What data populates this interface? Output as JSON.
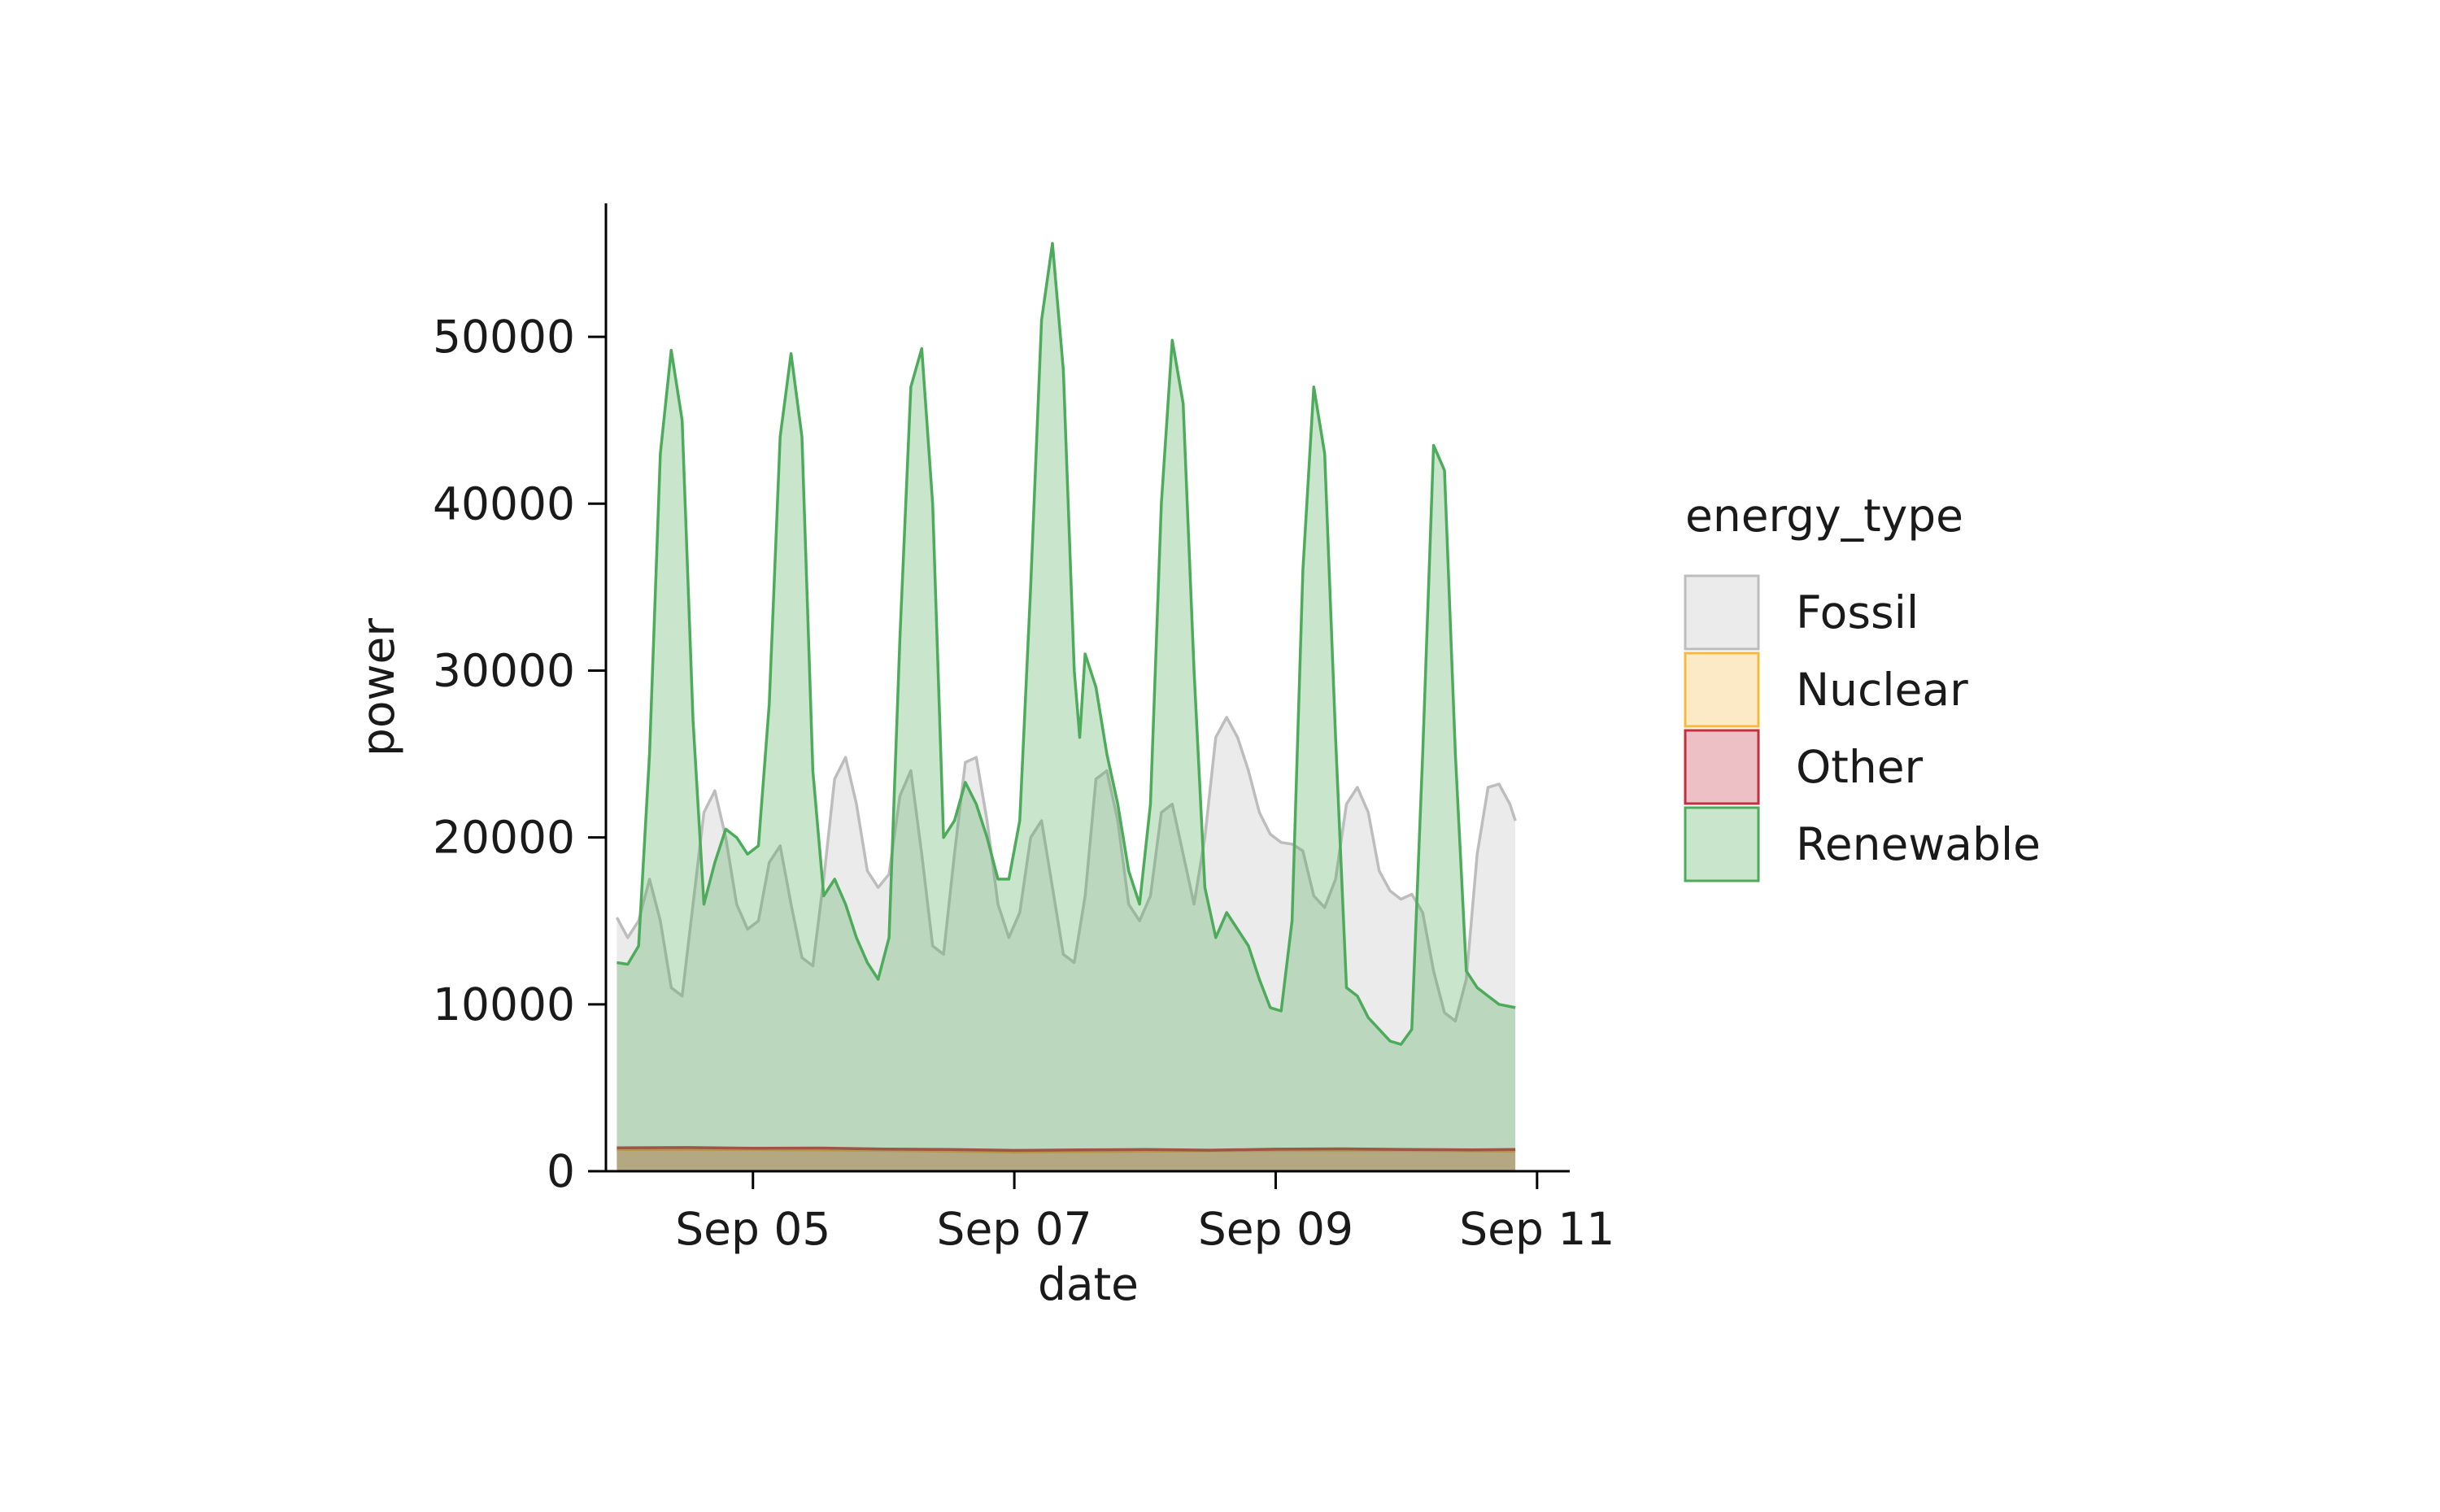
{
  "chart_data": {
    "type": "area",
    "xlabel": "date",
    "ylabel": "power",
    "xlim": [
      "2024-09-03 21:00",
      "2024-09-11 06:00"
    ],
    "ylim": [
      0,
      58000
    ],
    "x_ticks": [
      {
        "value": "2024-09-05 00:00",
        "label": "Sep 05"
      },
      {
        "value": "2024-09-07 00:00",
        "label": "Sep 07"
      },
      {
        "value": "2024-09-09 00:00",
        "label": "Sep 09"
      },
      {
        "value": "2024-09-11 00:00",
        "label": "Sep 11"
      }
    ],
    "y_ticks": [
      0,
      10000,
      20000,
      30000,
      40000,
      50000
    ],
    "y_tick_labels": [
      "0",
      "10000",
      "20000",
      "30000",
      "40000",
      "50000"
    ],
    "legend": {
      "title": "energy_type",
      "placement": "right"
    },
    "grid": false,
    "stacked": false,
    "series": [
      {
        "name": "Fossil",
        "color": "#bdbdbd",
        "points": [
          [
            "2024-09-03 23:00",
            15200
          ],
          [
            "2024-09-04 01:00",
            14000
          ],
          [
            "2024-09-04 03:00",
            15000
          ],
          [
            "2024-09-04 05:00",
            17500
          ],
          [
            "2024-09-04 07:00",
            15000
          ],
          [
            "2024-09-04 09:00",
            11000
          ],
          [
            "2024-09-04 11:00",
            10500
          ],
          [
            "2024-09-04 13:00",
            16000
          ],
          [
            "2024-09-04 15:00",
            21500
          ],
          [
            "2024-09-04 17:00",
            22800
          ],
          [
            "2024-09-04 19:00",
            20000
          ],
          [
            "2024-09-04 21:00",
            16000
          ],
          [
            "2024-09-04 23:00",
            14500
          ],
          [
            "2024-09-05 01:00",
            15000
          ],
          [
            "2024-09-05 03:00",
            18500
          ],
          [
            "2024-09-05 05:00",
            19500
          ],
          [
            "2024-09-05 07:00",
            16000
          ],
          [
            "2024-09-05 09:00",
            12800
          ],
          [
            "2024-09-05 11:00",
            12300
          ],
          [
            "2024-09-05 13:00",
            17500
          ],
          [
            "2024-09-05 15:00",
            23500
          ],
          [
            "2024-09-05 17:00",
            24800
          ],
          [
            "2024-09-05 19:00",
            22000
          ],
          [
            "2024-09-05 21:00",
            18000
          ],
          [
            "2024-09-05 23:00",
            17000
          ],
          [
            "2024-09-06 01:00",
            17800
          ],
          [
            "2024-09-06 03:00",
            22500
          ],
          [
            "2024-09-06 05:00",
            24000
          ],
          [
            "2024-09-06 07:00",
            19000
          ],
          [
            "2024-09-06 09:00",
            13500
          ],
          [
            "2024-09-06 11:00",
            13000
          ],
          [
            "2024-09-06 13:00",
            19000
          ],
          [
            "2024-09-06 15:00",
            24500
          ],
          [
            "2024-09-06 17:00",
            24800
          ],
          [
            "2024-09-06 19:00",
            21000
          ],
          [
            "2024-09-06 21:00",
            16000
          ],
          [
            "2024-09-06 23:00",
            14000
          ],
          [
            "2024-09-07 01:00",
            15500
          ],
          [
            "2024-09-07 03:00",
            20000
          ],
          [
            "2024-09-07 05:00",
            21000
          ],
          [
            "2024-09-07 07:00",
            17000
          ],
          [
            "2024-09-07 09:00",
            13000
          ],
          [
            "2024-09-07 11:00",
            12500
          ],
          [
            "2024-09-07 13:00",
            16500
          ],
          [
            "2024-09-07 15:00",
            23500
          ],
          [
            "2024-09-07 17:00",
            24000
          ],
          [
            "2024-09-07 19:00",
            21000
          ],
          [
            "2024-09-07 21:00",
            16000
          ],
          [
            "2024-09-07 23:00",
            15000
          ],
          [
            "2024-09-08 01:00",
            16500
          ],
          [
            "2024-09-08 03:00",
            21500
          ],
          [
            "2024-09-08 05:00",
            22000
          ],
          [
            "2024-09-08 07:00",
            19000
          ],
          [
            "2024-09-08 09:00",
            16000
          ],
          [
            "2024-09-08 11:00",
            20000
          ],
          [
            "2024-09-08 13:00",
            26000
          ],
          [
            "2024-09-08 15:00",
            27200
          ],
          [
            "2024-09-08 17:00",
            26000
          ],
          [
            "2024-09-08 19:00",
            24000
          ],
          [
            "2024-09-08 21:00",
            21500
          ],
          [
            "2024-09-08 23:00",
            20200
          ],
          [
            "2024-09-09 01:00",
            19700
          ],
          [
            "2024-09-09 03:00",
            19600
          ],
          [
            "2024-09-09 05:00",
            19200
          ],
          [
            "2024-09-09 07:00",
            16500
          ],
          [
            "2024-09-09 09:00",
            15800
          ],
          [
            "2024-09-09 11:00",
            17500
          ],
          [
            "2024-09-09 13:00",
            22000
          ],
          [
            "2024-09-09 15:00",
            23000
          ],
          [
            "2024-09-09 17:00",
            21500
          ],
          [
            "2024-09-09 19:00",
            18000
          ],
          [
            "2024-09-09 21:00",
            16800
          ],
          [
            "2024-09-09 23:00",
            16300
          ],
          [
            "2024-09-10 01:00",
            16600
          ],
          [
            "2024-09-10 03:00",
            15500
          ],
          [
            "2024-09-10 05:00",
            12000
          ],
          [
            "2024-09-10 07:00",
            9500
          ],
          [
            "2024-09-10 09:00",
            9000
          ],
          [
            "2024-09-10 11:00",
            11500
          ],
          [
            "2024-09-10 13:00",
            19000
          ],
          [
            "2024-09-10 15:00",
            23000
          ],
          [
            "2024-09-10 17:00",
            23200
          ],
          [
            "2024-09-10 19:00",
            22000
          ],
          [
            "2024-09-10 20:00",
            21000
          ]
        ]
      },
      {
        "name": "Nuclear",
        "color": "#f5b941",
        "points": [
          [
            "2024-09-03 23:00",
            1300
          ],
          [
            "2024-09-05 00:00",
            1300
          ],
          [
            "2024-09-06 00:00",
            1250
          ],
          [
            "2024-09-07 00:00",
            1150
          ],
          [
            "2024-09-08 00:00",
            1200
          ],
          [
            "2024-09-09 00:00",
            1250
          ],
          [
            "2024-09-10 00:00",
            1250
          ],
          [
            "2024-09-10 20:00",
            1200
          ]
        ]
      },
      {
        "name": "Other",
        "color": "#c0303f",
        "points": [
          [
            "2024-09-03 23:00",
            1400
          ],
          [
            "2024-09-04 12:00",
            1420
          ],
          [
            "2024-09-05 00:00",
            1380
          ],
          [
            "2024-09-05 12:00",
            1390
          ],
          [
            "2024-09-06 00:00",
            1330
          ],
          [
            "2024-09-06 12:00",
            1300
          ],
          [
            "2024-09-07 00:00",
            1250
          ],
          [
            "2024-09-07 12:00",
            1280
          ],
          [
            "2024-09-08 00:00",
            1300
          ],
          [
            "2024-09-08 12:00",
            1260
          ],
          [
            "2024-09-09 00:00",
            1320
          ],
          [
            "2024-09-09 12:00",
            1340
          ],
          [
            "2024-09-10 00:00",
            1300
          ],
          [
            "2024-09-10 12:00",
            1280
          ],
          [
            "2024-09-10 20:00",
            1300
          ]
        ]
      },
      {
        "name": "Renewable",
        "color": "#4dab5b",
        "points": [
          [
            "2024-09-03 23:00",
            12500
          ],
          [
            "2024-09-04 01:00",
            12400
          ],
          [
            "2024-09-04 03:00",
            13500
          ],
          [
            "2024-09-04 05:00",
            25000
          ],
          [
            "2024-09-04 07:00",
            43000
          ],
          [
            "2024-09-04 09:00",
            49200
          ],
          [
            "2024-09-04 11:00",
            45000
          ],
          [
            "2024-09-04 13:00",
            27000
          ],
          [
            "2024-09-04 15:00",
            16000
          ],
          [
            "2024-09-04 17:00",
            18500
          ],
          [
            "2024-09-04 19:00",
            20500
          ],
          [
            "2024-09-04 21:00",
            20000
          ],
          [
            "2024-09-04 23:00",
            19000
          ],
          [
            "2024-09-05 01:00",
            19500
          ],
          [
            "2024-09-05 03:00",
            28000
          ],
          [
            "2024-09-05 05:00",
            44000
          ],
          [
            "2024-09-05 07:00",
            49000
          ],
          [
            "2024-09-05 09:00",
            44000
          ],
          [
            "2024-09-05 11:00",
            24000
          ],
          [
            "2024-09-05 13:00",
            16500
          ],
          [
            "2024-09-05 15:00",
            17500
          ],
          [
            "2024-09-05 17:00",
            16000
          ],
          [
            "2024-09-05 19:00",
            14000
          ],
          [
            "2024-09-05 21:00",
            12500
          ],
          [
            "2024-09-05 23:00",
            11500
          ],
          [
            "2024-09-06 01:00",
            14000
          ],
          [
            "2024-09-06 03:00",
            32000
          ],
          [
            "2024-09-06 05:00",
            47000
          ],
          [
            "2024-09-06 07:00",
            49300
          ],
          [
            "2024-09-06 09:00",
            40000
          ],
          [
            "2024-09-06 11:00",
            20000
          ],
          [
            "2024-09-06 13:00",
            21000
          ],
          [
            "2024-09-06 15:00",
            23300
          ],
          [
            "2024-09-06 17:00",
            22000
          ],
          [
            "2024-09-06 19:00",
            20000
          ],
          [
            "2024-09-06 21:00",
            17500
          ],
          [
            "2024-09-06 23:00",
            17500
          ],
          [
            "2024-09-07 01:00",
            21000
          ],
          [
            "2024-09-07 03:00",
            35000
          ],
          [
            "2024-09-07 05:00",
            51000
          ],
          [
            "2024-09-07 07:00",
            55600
          ],
          [
            "2024-09-07 09:00",
            48000
          ],
          [
            "2024-09-07 11:00",
            30000
          ],
          [
            "2024-09-07 12:00",
            26000
          ],
          [
            "2024-09-07 13:00",
            31000
          ],
          [
            "2024-09-07 15:00",
            29000
          ],
          [
            "2024-09-07 17:00",
            25000
          ],
          [
            "2024-09-07 19:00",
            22000
          ],
          [
            "2024-09-07 21:00",
            18000
          ],
          [
            "2024-09-07 23:00",
            16000
          ],
          [
            "2024-09-08 01:00",
            22000
          ],
          [
            "2024-09-08 03:00",
            40000
          ],
          [
            "2024-09-08 05:00",
            49800
          ],
          [
            "2024-09-08 07:00",
            46000
          ],
          [
            "2024-09-08 09:00",
            30000
          ],
          [
            "2024-09-08 11:00",
            17000
          ],
          [
            "2024-09-08 13:00",
            14000
          ],
          [
            "2024-09-08 15:00",
            15500
          ],
          [
            "2024-09-08 17:00",
            14500
          ],
          [
            "2024-09-08 19:00",
            13500
          ],
          [
            "2024-09-08 21:00",
            11500
          ],
          [
            "2024-09-08 23:00",
            9800
          ],
          [
            "2024-09-09 01:00",
            9600
          ],
          [
            "2024-09-09 03:00",
            15000
          ],
          [
            "2024-09-09 05:00",
            36000
          ],
          [
            "2024-09-09 07:00",
            47000
          ],
          [
            "2024-09-09 09:00",
            43000
          ],
          [
            "2024-09-09 11:00",
            26000
          ],
          [
            "2024-09-09 13:00",
            11000
          ],
          [
            "2024-09-09 15:00",
            10500
          ],
          [
            "2024-09-09 17:00",
            9200
          ],
          [
            "2024-09-09 19:00",
            8500
          ],
          [
            "2024-09-09 21:00",
            7800
          ],
          [
            "2024-09-09 23:00",
            7600
          ],
          [
            "2024-09-10 01:00",
            8500
          ],
          [
            "2024-09-10 03:00",
            25000
          ],
          [
            "2024-09-10 05:00",
            43500
          ],
          [
            "2024-09-10 07:00",
            42000
          ],
          [
            "2024-09-10 09:00",
            25000
          ],
          [
            "2024-09-10 11:00",
            12000
          ],
          [
            "2024-09-10 13:00",
            11000
          ],
          [
            "2024-09-10 15:00",
            10500
          ],
          [
            "2024-09-10 17:00",
            10000
          ],
          [
            "2024-09-10 20:00",
            9800
          ]
        ]
      }
    ]
  }
}
